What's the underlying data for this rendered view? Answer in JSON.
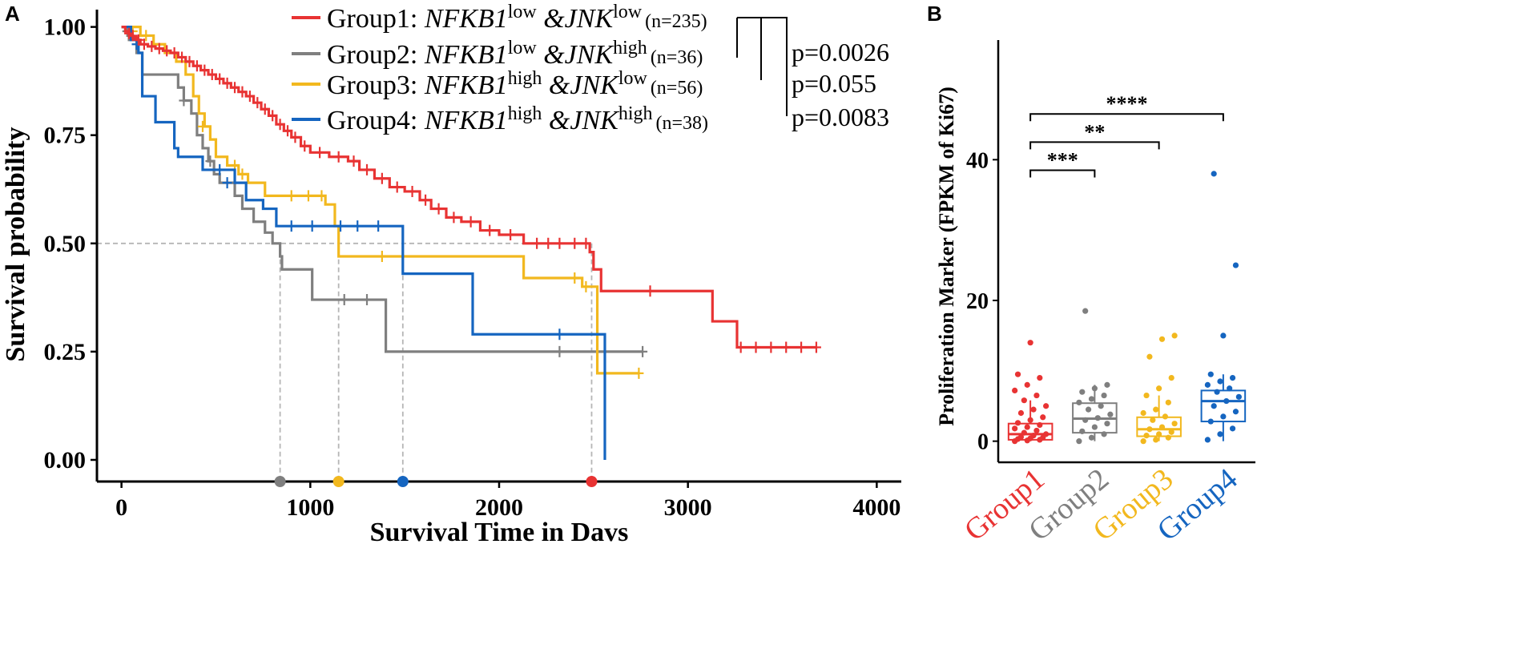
{
  "colors": {
    "group1": "#e83333",
    "group2": "#7f7f7f",
    "group3": "#f2b81e",
    "group4": "#1565c0",
    "axis": "#000000",
    "guide": "#b5b5b5"
  },
  "chart_data": [
    {
      "type": "line",
      "subtype": "kaplan-meier",
      "panel": "A",
      "xlabel": "Survival Time in Davs",
      "ylabel": "Survival probability",
      "xlim": [
        -130,
        4130
      ],
      "ylim": [
        -0.05,
        1.04
      ],
      "xticks": [
        0,
        1000,
        2000,
        3000,
        4000
      ],
      "yticks": [
        0.0,
        0.25,
        0.5,
        0.75,
        1.0
      ],
      "xtick_labels": [
        "0",
        "1000",
        "2000",
        "3000",
        "4000"
      ],
      "ytick_labels": [
        "0.00",
        "0.25",
        "0.50",
        "0.75",
        "1.00"
      ],
      "median_reference_y": 0.5,
      "legend_position": "top",
      "series": [
        {
          "key": "group1",
          "label_pre": "Group1: ",
          "label_gene1": "NFKB1",
          "label_sup1": "low",
          "label_gene2": " &JNK",
          "label_sup2": "low",
          "label_n": "(n=235)",
          "median_survival": 2490,
          "steps": [
            [
              0,
              1.0
            ],
            [
              20,
              0.99
            ],
            [
              40,
              0.98
            ],
            [
              60,
              0.975
            ],
            [
              80,
              0.97
            ],
            [
              100,
              0.96
            ],
            [
              140,
              0.955
            ],
            [
              180,
              0.95
            ],
            [
              220,
              0.945
            ],
            [
              260,
              0.94
            ],
            [
              300,
              0.93
            ],
            [
              340,
              0.92
            ],
            [
              380,
              0.91
            ],
            [
              420,
              0.9
            ],
            [
              460,
              0.89
            ],
            [
              500,
              0.88
            ],
            [
              540,
              0.87
            ],
            [
              580,
              0.86
            ],
            [
              620,
              0.85
            ],
            [
              660,
              0.84
            ],
            [
              700,
              0.825
            ],
            [
              740,
              0.81
            ],
            [
              780,
              0.795
            ],
            [
              820,
              0.775
            ],
            [
              860,
              0.76
            ],
            [
              900,
              0.745
            ],
            [
              950,
              0.725
            ],
            [
              1000,
              0.71
            ],
            [
              1100,
              0.7
            ],
            [
              1200,
              0.69
            ],
            [
              1260,
              0.67
            ],
            [
              1340,
              0.65
            ],
            [
              1420,
              0.63
            ],
            [
              1500,
              0.62
            ],
            [
              1580,
              0.6
            ],
            [
              1640,
              0.58
            ],
            [
              1720,
              0.56
            ],
            [
              1800,
              0.55
            ],
            [
              1900,
              0.53
            ],
            [
              2000,
              0.52
            ],
            [
              2130,
              0.5
            ],
            [
              2480,
              0.48
            ],
            [
              2500,
              0.44
            ],
            [
              2540,
              0.39
            ],
            [
              3130,
              0.32
            ],
            [
              3260,
              0.26
            ],
            [
              3680,
              0.26
            ]
          ],
          "censors": [
            [
              40,
              0.985
            ],
            [
              60,
              0.98
            ],
            [
              90,
              0.97
            ],
            [
              120,
              0.96
            ],
            [
              160,
              0.955
            ],
            [
              200,
              0.95
            ],
            [
              240,
              0.945
            ],
            [
              280,
              0.94
            ],
            [
              320,
              0.93
            ],
            [
              360,
              0.92
            ],
            [
              400,
              0.91
            ],
            [
              440,
              0.9
            ],
            [
              480,
              0.89
            ],
            [
              520,
              0.88
            ],
            [
              560,
              0.87
            ],
            [
              600,
              0.86
            ],
            [
              640,
              0.85
            ],
            [
              680,
              0.84
            ],
            [
              720,
              0.825
            ],
            [
              760,
              0.81
            ],
            [
              800,
              0.795
            ],
            [
              840,
              0.775
            ],
            [
              880,
              0.76
            ],
            [
              920,
              0.745
            ],
            [
              970,
              0.725
            ],
            [
              1050,
              0.71
            ],
            [
              1150,
              0.7
            ],
            [
              1230,
              0.69
            ],
            [
              1300,
              0.67
            ],
            [
              1380,
              0.65
            ],
            [
              1460,
              0.63
            ],
            [
              1540,
              0.62
            ],
            [
              1610,
              0.6
            ],
            [
              1680,
              0.58
            ],
            [
              1760,
              0.56
            ],
            [
              1850,
              0.55
            ],
            [
              1950,
              0.53
            ],
            [
              2060,
              0.52
            ],
            [
              2200,
              0.5
            ],
            [
              2260,
              0.5
            ],
            [
              2320,
              0.5
            ],
            [
              2400,
              0.5
            ],
            [
              2460,
              0.5
            ],
            [
              2800,
              0.39
            ],
            [
              3280,
              0.26
            ],
            [
              3360,
              0.26
            ],
            [
              3440,
              0.26
            ],
            [
              3520,
              0.26
            ],
            [
              3600,
              0.26
            ],
            [
              3680,
              0.26
            ]
          ]
        },
        {
          "key": "group2",
          "label_pre": "Group2: ",
          "label_gene1": "NFKB1",
          "label_sup1": "low",
          "label_gene2": " &JNK",
          "label_sup2": "high",
          "label_n": "(n=36)",
          "median_survival": 840,
          "steps": [
            [
              0,
              1.0
            ],
            [
              40,
              0.97
            ],
            [
              80,
              0.94
            ],
            [
              110,
              0.89
            ],
            [
              300,
              0.86
            ],
            [
              330,
              0.83
            ],
            [
              370,
              0.8
            ],
            [
              400,
              0.75
            ],
            [
              430,
              0.72
            ],
            [
              460,
              0.69
            ],
            [
              490,
              0.66
            ],
            [
              520,
              0.64
            ],
            [
              600,
              0.61
            ],
            [
              640,
              0.58
            ],
            [
              700,
              0.55
            ],
            [
              760,
              0.525
            ],
            [
              800,
              0.5
            ],
            [
              840,
              0.47
            ],
            [
              850,
              0.44
            ],
            [
              960,
              0.44
            ],
            [
              1010,
              0.37
            ],
            [
              1400,
              0.25
            ],
            [
              2760,
              0.25
            ]
          ],
          "censors": [
            [
              30,
              0.99
            ],
            [
              330,
              0.83
            ],
            [
              470,
              0.69
            ],
            [
              1180,
              0.37
            ],
            [
              1300,
              0.37
            ],
            [
              2320,
              0.25
            ],
            [
              2760,
              0.25
            ]
          ]
        },
        {
          "key": "group3",
          "label_pre": "Group3: ",
          "label_gene1": "NFKB1",
          "label_sup1": "high",
          "label_gene2": " &JNK",
          "label_sup2": "low",
          "label_n": "(n=56)",
          "median_survival": 1150,
          "steps": [
            [
              0,
              1.0
            ],
            [
              100,
              0.98
            ],
            [
              170,
              0.96
            ],
            [
              230,
              0.94
            ],
            [
              290,
              0.92
            ],
            [
              340,
              0.89
            ],
            [
              380,
              0.84
            ],
            [
              410,
              0.8
            ],
            [
              440,
              0.77
            ],
            [
              470,
              0.74
            ],
            [
              500,
              0.7
            ],
            [
              560,
              0.68
            ],
            [
              620,
              0.66
            ],
            [
              670,
              0.64
            ],
            [
              760,
              0.61
            ],
            [
              1080,
              0.59
            ],
            [
              1130,
              0.54
            ],
            [
              1150,
              0.47
            ],
            [
              2130,
              0.42
            ],
            [
              2440,
              0.4
            ],
            [
              2520,
              0.2
            ],
            [
              2740,
              0.2
            ]
          ],
          "censors": [
            [
              60,
              0.99
            ],
            [
              130,
              0.98
            ],
            [
              430,
              0.77
            ],
            [
              600,
              0.68
            ],
            [
              640,
              0.66
            ],
            [
              900,
              0.61
            ],
            [
              990,
              0.61
            ],
            [
              1060,
              0.61
            ],
            [
              1380,
              0.47
            ],
            [
              2400,
              0.42
            ],
            [
              2460,
              0.4
            ],
            [
              2740,
              0.2
            ]
          ]
        },
        {
          "key": "group4",
          "label_pre": "Group4: ",
          "label_gene1": "NFKB1",
          "label_sup1": "high",
          "label_gene2": " &JNK",
          "label_sup2": "high",
          "label_n": "(n=38)",
          "median_survival": 1490,
          "steps": [
            [
              0,
              1.0
            ],
            [
              50,
              0.97
            ],
            [
              90,
              0.94
            ],
            [
              110,
              0.84
            ],
            [
              180,
              0.78
            ],
            [
              280,
              0.72
            ],
            [
              300,
              0.7
            ],
            [
              430,
              0.67
            ],
            [
              600,
              0.64
            ],
            [
              660,
              0.6
            ],
            [
              750,
              0.58
            ],
            [
              820,
              0.54
            ],
            [
              1490,
              0.43
            ],
            [
              1860,
              0.29
            ],
            [
              2560,
              0.29
            ],
            [
              2560,
              0.0
            ]
          ],
          "censors": [
            [
              80,
              0.96
            ],
            [
              520,
              0.67
            ],
            [
              560,
              0.64
            ],
            [
              900,
              0.54
            ],
            [
              1010,
              0.54
            ],
            [
              1160,
              0.54
            ],
            [
              1250,
              0.54
            ],
            [
              1360,
              0.54
            ],
            [
              2320,
              0.29
            ]
          ]
        }
      ],
      "logrank": {
        "labels": [
          "p=0.0026",
          "p=0.055",
          "p=0.0083"
        ]
      }
    },
    {
      "type": "box",
      "panel": "B",
      "ylabel": "Proliferation Marker (FPKM of Ki67)",
      "ylim": [
        -3,
        57
      ],
      "yticks": [
        0,
        20,
        40
      ],
      "ytick_labels": [
        "0",
        "20",
        "40"
      ],
      "categories": [
        "Group1",
        "Group2",
        "Group3",
        "Group4"
      ],
      "series": [
        {
          "key": "group1",
          "q1": 0.2,
          "median": 1.0,
          "q3": 2.5,
          "whisker_low": 0,
          "whisker_high": 5.8,
          "points": [
            0,
            0.1,
            0.2,
            0.3,
            0.4,
            0.5,
            0.6,
            0.8,
            1,
            1.2,
            1.5,
            1.8,
            2,
            2.3,
            2.6,
            3,
            3.4,
            4,
            4.5,
            5,
            5.8,
            6.5,
            7.2,
            8,
            9,
            9.5,
            14
          ]
        },
        {
          "key": "group2",
          "q1": 1.2,
          "median": 3.2,
          "q3": 5.4,
          "whisker_low": 0,
          "whisker_high": 8,
          "points": [
            0,
            0.5,
            1,
            1.4,
            2,
            2.5,
            3,
            3.3,
            3.8,
            4.5,
            5,
            5.5,
            6,
            6.5,
            7,
            7.5,
            8,
            18.5
          ]
        },
        {
          "key": "group3",
          "q1": 0.7,
          "median": 1.7,
          "q3": 3.4,
          "whisker_low": 0,
          "whisker_high": 6.5,
          "points": [
            0,
            0.2,
            0.5,
            0.8,
            1,
            1.3,
            1.7,
            2,
            2.5,
            3,
            3.5,
            4,
            4.5,
            5.5,
            6.5,
            7.5,
            9,
            12,
            14.5,
            15
          ]
        },
        {
          "key": "group4",
          "q1": 2.8,
          "median": 5.7,
          "q3": 7.2,
          "whisker_low": 0,
          "whisker_high": 9.5,
          "points": [
            0.2,
            1,
            1.8,
            2.8,
            3.5,
            4.2,
            5,
            5.7,
            6.3,
            7,
            7.5,
            8,
            8.5,
            9,
            9.5,
            15,
            25,
            38
          ]
        }
      ],
      "comparisons": [
        {
          "from": 0,
          "to": 1,
          "y": 38.5,
          "label": "***"
        },
        {
          "from": 0,
          "to": 2,
          "y": 42.5,
          "label": "**"
        },
        {
          "from": 0,
          "to": 3,
          "y": 46.5,
          "label": "****"
        }
      ]
    }
  ],
  "panel_labels": {
    "a": "A",
    "b": "B"
  }
}
